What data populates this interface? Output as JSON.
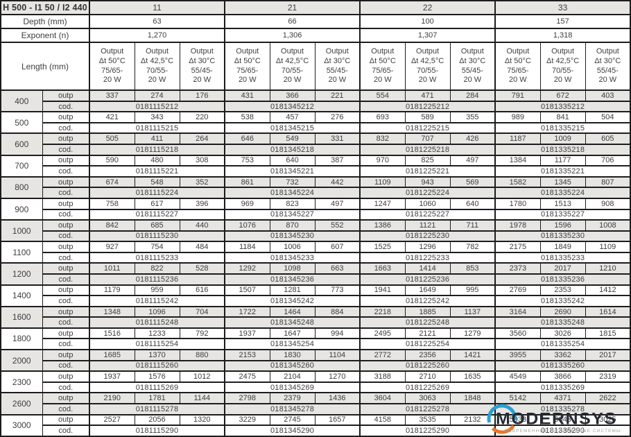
{
  "table": {
    "title": "H 500 - I1 50 / I2 440",
    "depth_label": "Depth (mm)",
    "exponent_label": "Exponent (n)",
    "length_label": "Length (mm)",
    "row_sub_labels": {
      "output": "outp",
      "code": "cod."
    },
    "groups": [
      {
        "type": "11",
        "depth": "63",
        "exponent": "1,270"
      },
      {
        "type": "21",
        "depth": "66",
        "exponent": "1,306"
      },
      {
        "type": "22",
        "depth": "100",
        "exponent": "1,307"
      },
      {
        "type": "33",
        "depth": "157",
        "exponent": "1,318"
      }
    ],
    "output_columns": [
      {
        "lines": [
          "Output",
          "Δt 50°C",
          "75/65-",
          "20 W"
        ]
      },
      {
        "lines": [
          "Output",
          "Δt 42,5°C",
          "70/55-",
          "20 W"
        ]
      },
      {
        "lines": [
          "Output",
          "Δt 30°C",
          "55/45-",
          "20 W"
        ]
      }
    ],
    "rows": [
      {
        "length": "400",
        "outputs": [
          337,
          274,
          176,
          431,
          366,
          221,
          554,
          471,
          284,
          791,
          672,
          403
        ],
        "codes": [
          "0181115212",
          "0181345212",
          "0181225212",
          "0181335212"
        ]
      },
      {
        "length": "500",
        "outputs": [
          421,
          343,
          220,
          538,
          457,
          276,
          693,
          589,
          355,
          989,
          841,
          504
        ],
        "codes": [
          "0181115215",
          "0181345215",
          "0181225215",
          "0181335215"
        ]
      },
      {
        "length": "600",
        "outputs": [
          505,
          411,
          264,
          646,
          549,
          331,
          832,
          707,
          426,
          1187,
          1009,
          605
        ],
        "codes": [
          "0181115218",
          "0181345218",
          "0181225218",
          "0181335218"
        ]
      },
      {
        "length": "700",
        "outputs": [
          590,
          480,
          308,
          753,
          640,
          387,
          970,
          825,
          497,
          1384,
          1177,
          706
        ],
        "codes": [
          "0181115221",
          "0181345221",
          "0181225221",
          "0181335221"
        ]
      },
      {
        "length": "800",
        "outputs": [
          674,
          548,
          352,
          861,
          732,
          442,
          1109,
          943,
          569,
          1582,
          1345,
          807
        ],
        "codes": [
          "0181115224",
          "0181345224",
          "0181225224",
          "0181335224"
        ]
      },
      {
        "length": "900",
        "outputs": [
          758,
          617,
          396,
          969,
          823,
          497,
          1247,
          1060,
          640,
          1780,
          1513,
          908
        ],
        "codes": [
          "0181115227",
          "0181345227",
          "0181225227",
          "0181335227"
        ]
      },
      {
        "length": "1000",
        "outputs": [
          842,
          685,
          440,
          1076,
          870,
          552,
          1386,
          1121,
          711,
          1978,
          1596,
          1008
        ],
        "codes": [
          "0181115230",
          "0181345230",
          "0181225230",
          "0181335230"
        ]
      },
      {
        "length": "1100",
        "outputs": [
          927,
          754,
          484,
          1184,
          1006,
          607,
          1525,
          1296,
          782,
          2175,
          1849,
          1109
        ],
        "codes": [
          "0181115233",
          "0181345233",
          "0181225233",
          "0181335233"
        ]
      },
      {
        "length": "1200",
        "outputs": [
          1011,
          822,
          528,
          1292,
          1098,
          663,
          1663,
          1414,
          853,
          2373,
          2017,
          1210
        ],
        "codes": [
          "0181115236",
          "0181345236",
          "0181225236",
          "0181335236"
        ]
      },
      {
        "length": "1400",
        "outputs": [
          1179,
          959,
          616,
          1507,
          1281,
          773,
          1941,
          1649,
          995,
          2769,
          2353,
          1412
        ],
        "codes": [
          "0181115242",
          "0181345242",
          "0181225242",
          "0181335242"
        ]
      },
      {
        "length": "1600",
        "outputs": [
          1348,
          1096,
          704,
          1722,
          1464,
          884,
          2218,
          1885,
          1137,
          3164,
          2690,
          1614
        ],
        "codes": [
          "0181115248",
          "0181345248",
          "0181225248",
          "0181335248"
        ]
      },
      {
        "length": "1800",
        "outputs": [
          1516,
          1233,
          792,
          1937,
          1647,
          994,
          2495,
          2121,
          1279,
          3560,
          3026,
          1815
        ],
        "codes": [
          "0181115254",
          "0181345254",
          "0181225254",
          "0181335254"
        ]
      },
      {
        "length": "2000",
        "outputs": [
          1685,
          1370,
          880,
          2153,
          1830,
          1104,
          2772,
          2356,
          1421,
          3955,
          3362,
          2017
        ],
        "codes": [
          "0181115260",
          "0181345260",
          "0181225260",
          "0181335260"
        ]
      },
      {
        "length": "2300",
        "outputs": [
          1937,
          1576,
          1012,
          2475,
          2104,
          1270,
          3188,
          2710,
          1635,
          4549,
          3866,
          2319
        ],
        "codes": [
          "0181115269",
          "0181345269",
          "0181225269",
          "0181335269"
        ]
      },
      {
        "length": "2600",
        "outputs": [
          2190,
          1781,
          1144,
          2798,
          2379,
          1436,
          3604,
          3063,
          1848,
          5142,
          4371,
          2622
        ],
        "codes": [
          "0181115278",
          "0181345278",
          "0181225278",
          "0181335278"
        ]
      },
      {
        "length": "3000",
        "outputs": [
          2527,
          2056,
          1320,
          3229,
          2745,
          1657,
          4158,
          3535,
          2132,
          5933,
          5043,
          3025
        ],
        "codes": [
          "0181115290",
          "0181345290",
          "0181225290",
          "0181335290"
        ]
      }
    ]
  },
  "watermark": {
    "brand": "MODERNSYS",
    "tagline": "СОВРЕМЕННЫЕ ИНЖЕНЕРНЫЕ СИСТЕМЫ",
    "blue": "#2a9fd6",
    "orange": "#e8772a",
    "text_color": "#252a33"
  },
  "colors": {
    "row_shade": "#e6e5e2",
    "border": "#1c1c1c",
    "text": "#3d3d3d"
  }
}
